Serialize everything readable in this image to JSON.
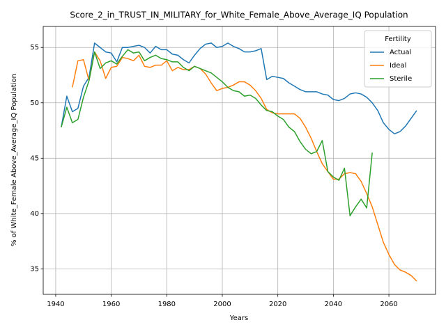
{
  "chart_data": {
    "type": "line",
    "title": "Score_2_in_TRUST_IN_MILITARY_for_White_Female_Above_Average_IQ Population",
    "x_label": "Years",
    "y_label": "% of White_Female Above_Average_IQ Population",
    "x": [
      1942,
      1944,
      1946,
      1948,
      1950,
      1952,
      1954,
      1956,
      1958,
      1960,
      1962,
      1964,
      1966,
      1968,
      1970,
      1972,
      1974,
      1976,
      1978,
      1980,
      1982,
      1984,
      1986,
      1988,
      1990,
      1992,
      1994,
      1996,
      1998,
      2000,
      2002,
      2004,
      2006,
      2008,
      2010,
      2012,
      2014,
      2016,
      2018,
      2020,
      2022,
      2024,
      2026,
      2028,
      2030,
      2032,
      2034,
      2036,
      2038,
      2040,
      2042,
      2044,
      2046,
      2048,
      2050,
      2052,
      2054,
      2056,
      2058,
      2060,
      2062,
      2064,
      2066,
      2068,
      2070
    ],
    "series": [
      {
        "name": "Actual",
        "color": "#1f77b4",
        "values": [
          47.8,
          50.6,
          49.2,
          49.5,
          51.5,
          52.3,
          55.4,
          55.0,
          54.6,
          54.5,
          53.7,
          55.0,
          55.0,
          55.1,
          55.2,
          55.0,
          54.5,
          55.1,
          54.8,
          54.8,
          54.4,
          54.3,
          53.9,
          53.6,
          54.3,
          54.9,
          55.3,
          55.4,
          55.0,
          55.1,
          55.4,
          55.1,
          54.9,
          54.6,
          54.6,
          54.7,
          54.9,
          52.1,
          52.4,
          52.3,
          52.2,
          51.8,
          51.5,
          51.2,
          51.0,
          51.0,
          51.0,
          50.8,
          50.7,
          50.3,
          50.2,
          50.4,
          50.8,
          50.9,
          50.8,
          50.5,
          50.0,
          49.3,
          48.2,
          47.6,
          47.2,
          47.4,
          47.9,
          48.6,
          49.3
        ]
      },
      {
        "name": "Ideal",
        "color": "#ff7f0e",
        "values": [
          null,
          null,
          51.4,
          53.8,
          53.9,
          52.0,
          54.6,
          53.8,
          52.2,
          53.2,
          53.3,
          54.1,
          54.0,
          53.8,
          54.3,
          53.3,
          53.2,
          53.4,
          53.4,
          53.8,
          52.9,
          53.2,
          53.0,
          53.0,
          53.3,
          53.1,
          52.6,
          51.8,
          51.1,
          51.3,
          51.4,
          51.6,
          51.9,
          51.9,
          51.6,
          51.1,
          50.4,
          49.4,
          49.1,
          49.0,
          49.0,
          49.0,
          49.0,
          48.6,
          47.8,
          46.8,
          45.6,
          44.5,
          43.8,
          43.1,
          43.1,
          43.6,
          43.7,
          43.6,
          42.9,
          41.8,
          40.6,
          39.0,
          37.4,
          36.3,
          35.4,
          34.9,
          34.7,
          34.4,
          33.9
        ]
      },
      {
        "name": "Sterile",
        "color": "#2ca02c",
        "values": [
          47.8,
          49.6,
          48.2,
          48.5,
          50.5,
          52.0,
          54.6,
          53.1,
          53.6,
          53.8,
          53.5,
          54.2,
          54.8,
          54.5,
          54.6,
          53.8,
          54.1,
          54.3,
          54.0,
          53.9,
          53.7,
          53.7,
          53.2,
          52.9,
          53.3,
          53.1,
          52.9,
          52.7,
          52.3,
          51.9,
          51.4,
          51.1,
          51.0,
          50.6,
          50.7,
          50.4,
          49.8,
          49.3,
          49.2,
          48.8,
          48.5,
          47.8,
          47.4,
          46.5,
          45.8,
          45.4,
          45.6,
          46.6,
          43.8,
          43.3,
          43.0,
          44.1,
          39.8,
          40.6,
          41.3,
          40.5,
          45.5,
          null,
          null,
          null,
          null,
          null,
          null,
          null,
          null
        ]
      }
    ],
    "xlim": [
      1935.5,
      2076.8
    ],
    "ylim": [
      32.7,
      56.9
    ],
    "xticks": [
      1940,
      1960,
      1980,
      2000,
      2020,
      2040,
      2060
    ],
    "yticks": [
      35,
      40,
      45,
      50,
      55
    ],
    "grid": true,
    "legend_title": "Fertility",
    "legend_position": "upper right"
  }
}
